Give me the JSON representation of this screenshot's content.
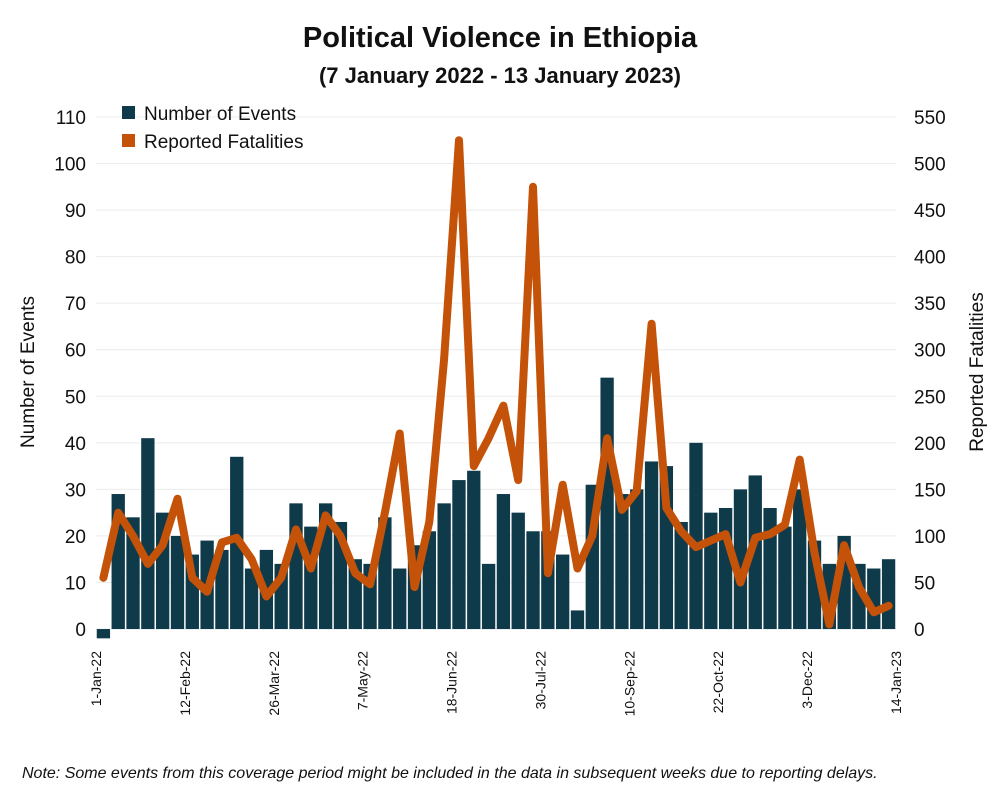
{
  "chart_data": {
    "type": "bar+line",
    "title": "Political Violence in Ethiopia",
    "subtitle": "(7 January 2022 - 13 January 2023)",
    "ylabel": "Number of Events",
    "y2label": "Reported Fatalities",
    "ylim": [
      -3,
      113
    ],
    "y2lim": [
      -15,
      565
    ],
    "yticks": [
      0,
      10,
      20,
      30,
      40,
      50,
      60,
      70,
      80,
      90,
      100,
      110
    ],
    "y2ticks": [
      0,
      50,
      100,
      150,
      200,
      250,
      300,
      350,
      400,
      450,
      500,
      550
    ],
    "grid": true,
    "legend_position": "top-left",
    "x_tick_labels": [
      "1-Jan-22",
      "12-Feb-22",
      "26-Mar-22",
      "7-May-22",
      "18-Jun-22",
      "30-Jul-22",
      "10-Sep-22",
      "22-Oct-22",
      "3-Dec-22",
      "14-Jan-23"
    ],
    "x_tick_indices": [
      0,
      6,
      12,
      18,
      24,
      30,
      36,
      42,
      48,
      54
    ],
    "series": [
      {
        "name": "Number of Events",
        "kind": "bar",
        "color": "#0e3a4a",
        "values": [
          -2,
          29,
          24,
          41,
          25,
          20,
          16,
          19,
          17,
          37,
          13,
          17,
          14,
          27,
          22,
          27,
          23,
          15,
          14,
          24,
          13,
          18,
          21,
          27,
          32,
          34,
          14,
          29,
          25,
          21,
          21,
          16,
          4,
          31,
          54,
          29,
          30,
          36,
          35,
          23,
          40,
          25,
          26,
          30,
          33,
          26,
          22,
          30,
          19,
          14,
          20,
          14,
          13,
          15
        ]
      },
      {
        "name": "Reported Fatalities",
        "kind": "line",
        "color": "#c45208",
        "values": [
          55,
          125,
          100,
          70,
          90,
          140,
          55,
          40,
          93,
          98,
          75,
          35,
          55,
          107,
          65,
          122,
          100,
          60,
          48,
          125,
          210,
          45,
          115,
          290,
          525,
          175,
          205,
          240,
          160,
          475,
          60,
          155,
          65,
          100,
          205,
          128,
          148,
          328,
          130,
          105,
          88,
          95,
          102,
          50,
          98,
          102,
          112,
          182,
          82,
          5,
          90,
          45,
          18,
          25
        ]
      }
    ]
  },
  "note": "Note: Some events from this coverage period might be included in the data in subsequent weeks due to reporting delays."
}
